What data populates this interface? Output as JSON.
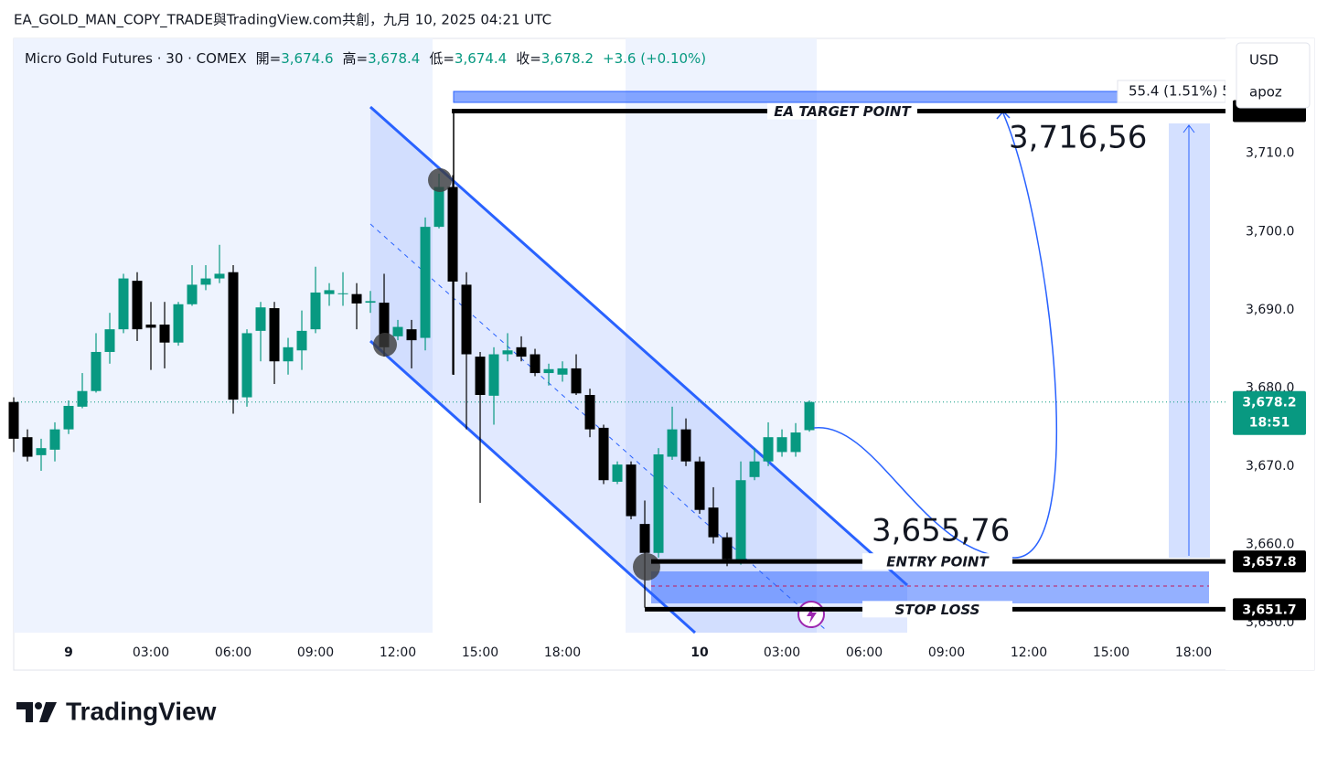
{
  "header": {
    "title": "EA_GOLD_MAN_COPY_TRADE與TradingView.com共創，九月 10, 2025 04:21 UTC",
    "symbol": "Micro Gold Futures · 30 · COMEX",
    "ohlc": [
      {
        "key": "開=",
        "value": "3,674.6"
      },
      {
        "key": "高=",
        "value": "3,678.4"
      },
      {
        "key": "低=",
        "value": "3,674.4"
      },
      {
        "key": "收=",
        "value": "3,678.2"
      }
    ],
    "change": "+3.6 (+0.10%)"
  },
  "side_panel": {
    "currency": "USD",
    "user": "apoz"
  },
  "footer": {
    "brand": "TradingView"
  },
  "chart_data": {
    "type": "candlestick",
    "x": [
      -4,
      -3,
      -2,
      -1,
      0,
      1,
      2,
      3,
      4,
      5,
      6,
      7,
      8,
      9,
      10,
      11,
      12,
      13,
      14,
      15,
      16,
      17,
      18,
      19,
      20,
      21,
      22,
      23,
      24,
      25,
      26,
      27,
      28,
      29,
      30,
      31,
      32,
      33,
      34,
      35,
      36,
      37,
      38,
      39,
      40,
      41,
      42,
      43,
      44,
      45,
      46,
      47,
      48,
      49,
      50,
      51,
      52,
      53,
      54
    ],
    "open": [
      3678.2,
      3673.7,
      3671.4,
      3672.1,
      3674.7,
      3677.6,
      3679.6,
      3684.6,
      3687.5,
      3693.7,
      3688.1,
      3688.1,
      3685.8,
      3690.7,
      3693.2,
      3694.0,
      3694.8,
      3678.8,
      3687.3,
      3690.2,
      3683.4,
      3684.8,
      3687.5,
      3692.0,
      3692.0,
      3692.0,
      3690.9,
      3690.9,
      3686.6,
      3687.5,
      3686.4,
      3700.6,
      3705.7,
      3693.2,
      3684.0,
      3679.0,
      3684.3,
      3685.2,
      3684.3,
      3681.9,
      3681.7,
      3682.5,
      3679.1,
      3674.9,
      3668.0,
      3670.2,
      3662.6,
      3658.9,
      3671.2,
      3674.7,
      3670.6,
      3664.7,
      3660.9,
      3657.7,
      3668.6,
      3670.6,
      3671.8,
      3671.8,
      3674.6
    ],
    "high": [
      3678.8,
      3674.7,
      3673.5,
      3675.6,
      3678.4,
      3681.9,
      3687.0,
      3689.6,
      3694.6,
      3694.8,
      3691.0,
      3691.0,
      3691.0,
      3695.7,
      3695.7,
      3698.3,
      3695.7,
      3687.5,
      3691.0,
      3691.0,
      3686.4,
      3689.9,
      3695.5,
      3693.4,
      3694.8,
      3693.4,
      3692.4,
      3694.6,
      3688.7,
      3688.7,
      3701.8,
      3707.4,
      3707.2,
      3694.8,
      3684.6,
      3685.2,
      3687.0,
      3686.6,
      3685.0,
      3683.1,
      3683.4,
      3684.3,
      3679.9,
      3675.3,
      3670.6,
      3670.6,
      3665.6,
      3672.3,
      3677.6,
      3676.1,
      3671.2,
      3667.3,
      3661.5,
      3670.6,
      3672.3,
      3675.6,
      3674.7,
      3675.5,
      3678.4
    ],
    "low": [
      3671.8,
      3670.6,
      3669.4,
      3670.6,
      3674.1,
      3677.4,
      3679.4,
      3683.1,
      3687.0,
      3686.0,
      3682.3,
      3682.5,
      3685.4,
      3690.5,
      3692.5,
      3693.4,
      3676.7,
      3677.6,
      3683.4,
      3680.5,
      3681.7,
      3682.3,
      3687.0,
      3690.5,
      3690.5,
      3687.5,
      3689.6,
      3684.0,
      3686.1,
      3682.5,
      3684.8,
      3700.4,
      3681.7,
      3674.7,
      3665.3,
      3675.3,
      3683.4,
      3683.4,
      3681.5,
      3680.3,
      3680.8,
      3679.1,
      3673.7,
      3667.7,
      3667.7,
      3663.2,
      3651.9,
      3658.3,
      3670.8,
      3670.0,
      3663.9,
      3660.1,
      3657.2,
      3657.4,
      3668.2,
      3670.0,
      3671.2,
      3671.2,
      3674.4
    ],
    "close": [
      3673.5,
      3671.2,
      3672.3,
      3674.7,
      3677.7,
      3679.6,
      3684.6,
      3687.5,
      3694.0,
      3687.5,
      3687.7,
      3685.8,
      3690.7,
      3693.2,
      3694.0,
      3694.6,
      3678.5,
      3687.0,
      3690.3,
      3683.4,
      3685.2,
      3687.3,
      3692.2,
      3692.5,
      3692.1,
      3690.8,
      3691.1,
      3685.2,
      3687.8,
      3686.1,
      3700.6,
      3705.7,
      3693.6,
      3684.3,
      3679.1,
      3684.3,
      3684.8,
      3684.0,
      3681.9,
      3682.4,
      3682.5,
      3679.3,
      3674.7,
      3668.2,
      3670.2,
      3663.6,
      3658.9,
      3671.5,
      3674.7,
      3670.6,
      3664.4,
      3660.9,
      3658.1,
      3668.2,
      3670.6,
      3673.7,
      3673.7,
      3674.3,
      3678.2
    ],
    "up_color": "#089981",
    "down_color": "#000000",
    "last_price_label": "3,678.2",
    "countdown": "18:51",
    "xlim": [
      -4,
      84.33
    ],
    "xticks": [
      {
        "value": 0,
        "label": "9"
      },
      {
        "value": 6,
        "label": "03:00"
      },
      {
        "value": 12,
        "label": "06:00"
      },
      {
        "value": 18,
        "label": "09:00"
      },
      {
        "value": 24,
        "label": "12:00"
      },
      {
        "value": 30,
        "label": "15:00"
      },
      {
        "value": 36,
        "label": "18:00"
      },
      {
        "value": 46,
        "label": "10"
      },
      {
        "value": 52,
        "label": "03:00"
      },
      {
        "value": 58,
        "label": "06:00"
      },
      {
        "value": 64,
        "label": "09:00"
      },
      {
        "value": 70,
        "label": "12:00"
      },
      {
        "value": 76,
        "label": "15:00"
      },
      {
        "value": 82,
        "label": "18:00"
      }
    ],
    "ylim": [
      3648.7,
      3724.7
    ],
    "yticks": [
      {
        "value": 3650,
        "label": "3,650.0"
      },
      {
        "value": 3660,
        "label": "3,660.0"
      },
      {
        "value": 3670,
        "label": "3,670.0"
      },
      {
        "value": 3680,
        "label": "3,680.0"
      },
      {
        "value": 3690,
        "label": "3,690.0"
      },
      {
        "value": 3700,
        "label": "3,700.0"
      },
      {
        "value": 3710,
        "label": "3,710.0"
      }
    ],
    "grid": false,
    "levels": [
      {
        "name": "EA TARGET POINT",
        "value": 3715.4
      },
      {
        "name": "ENTRY POINT",
        "value": 3657.8,
        "value_label": "3,657.8"
      },
      {
        "name": "STOP LOSS",
        "value": 3651.7,
        "value_label": "3,651.7"
      }
    ],
    "annotations": [
      "3,716,56",
      "3,655,76"
    ],
    "measure_label": "55.4 (1.51%) 5"
  }
}
